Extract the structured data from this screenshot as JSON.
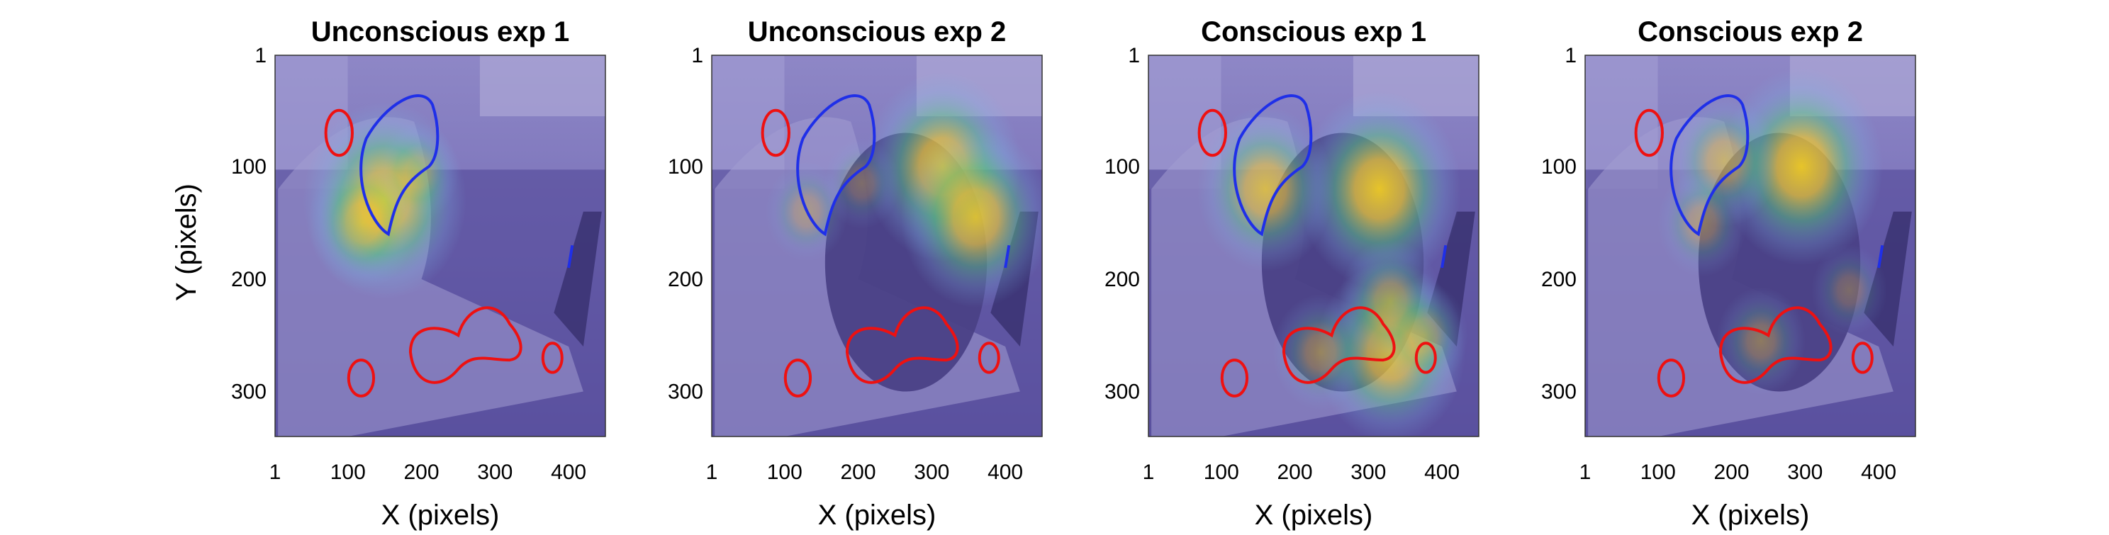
{
  "chart_data": [
    {
      "type": "heatmap",
      "title": "Unconscious exp 1",
      "xlabel": "X (pixels)",
      "ylabel": "Y (pixels)",
      "xticks": [
        1,
        100,
        200,
        300,
        400
      ],
      "yticks": [
        1,
        100,
        200,
        300
      ],
      "xlim": [
        1,
        450
      ],
      "ylim": [
        1,
        340
      ],
      "hotspots": [
        {
          "x": 150,
          "y": 130,
          "intensity": 0.95
        },
        {
          "x": 120,
          "y": 150,
          "intensity": 0.55
        },
        {
          "x": 195,
          "y": 105,
          "intensity": 0.35
        }
      ]
    },
    {
      "type": "heatmap",
      "title": "Unconscious exp 2",
      "xlabel": "X (pixels)",
      "ylabel": "",
      "xticks": [
        1,
        100,
        200,
        300,
        400
      ],
      "yticks": [
        1,
        100,
        200,
        300
      ],
      "xlim": [
        1,
        450
      ],
      "ylim": [
        1,
        340
      ],
      "hotspots": [
        {
          "x": 315,
          "y": 100,
          "intensity": 0.9
        },
        {
          "x": 360,
          "y": 145,
          "intensity": 0.85
        },
        {
          "x": 130,
          "y": 140,
          "intensity": 0.35
        },
        {
          "x": 205,
          "y": 115,
          "intensity": 0.3
        }
      ]
    },
    {
      "type": "heatmap",
      "title": "Conscious exp 1",
      "xlabel": "X (pixels)",
      "ylabel": "",
      "xticks": [
        1,
        100,
        200,
        300,
        400
      ],
      "yticks": [
        1,
        100,
        200,
        300
      ],
      "xlim": [
        1,
        450
      ],
      "ylim": [
        1,
        340
      ],
      "hotspots": [
        {
          "x": 315,
          "y": 120,
          "intensity": 0.95
        },
        {
          "x": 160,
          "y": 120,
          "intensity": 0.75
        },
        {
          "x": 330,
          "y": 265,
          "intensity": 0.85
        },
        {
          "x": 235,
          "y": 265,
          "intensity": 0.45
        },
        {
          "x": 330,
          "y": 220,
          "intensity": 0.5
        },
        {
          "x": 375,
          "y": 250,
          "intensity": 0.4
        }
      ]
    },
    {
      "type": "heatmap",
      "title": "Conscious exp 2",
      "xlabel": "X (pixels)",
      "ylabel": "",
      "xticks": [
        1,
        100,
        200,
        300,
        400
      ],
      "yticks": [
        1,
        100,
        200,
        300
      ],
      "xlim": [
        1,
        450
      ],
      "ylim": [
        1,
        340
      ],
      "hotspots": [
        {
          "x": 295,
          "y": 100,
          "intensity": 0.95
        },
        {
          "x": 190,
          "y": 95,
          "intensity": 0.55
        },
        {
          "x": 160,
          "y": 150,
          "intensity": 0.4
        },
        {
          "x": 240,
          "y": 255,
          "intensity": 0.4
        },
        {
          "x": 360,
          "y": 210,
          "intensity": 0.3
        }
      ]
    }
  ],
  "colors": {
    "background_overlay": "#6f66b8",
    "face_region": "#1a2ee6",
    "hand_region": "#ee1111",
    "heat_high": "#f6d12a",
    "heat_mid": "#56c48a",
    "heat_low": "#7ab0e0"
  }
}
